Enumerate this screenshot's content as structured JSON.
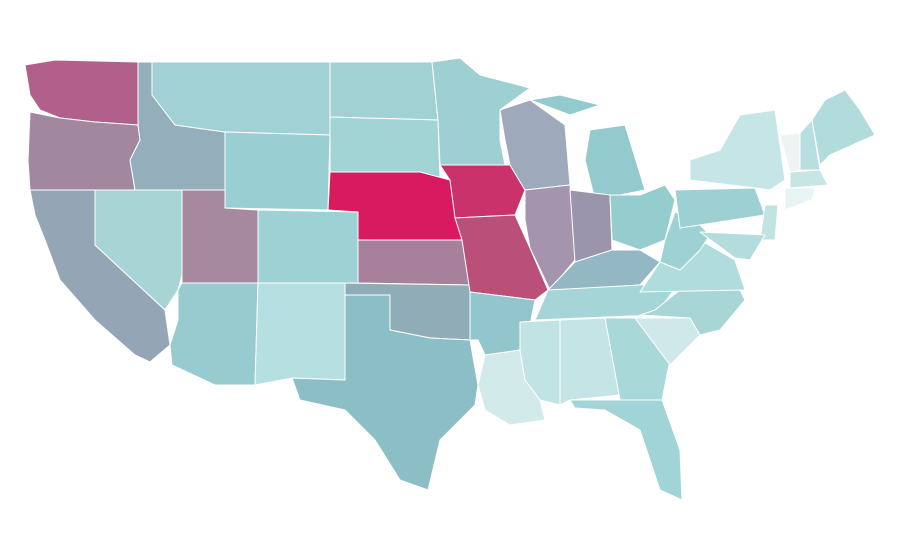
{
  "map": {
    "regions": [
      {
        "color": "#b0608a"
      },
      {
        "color": "#a2889e"
      },
      {
        "color": "#94a6b6"
      },
      {
        "color": "#a8d4d6"
      },
      {
        "color": "#94afbb"
      },
      {
        "color": "#a1d1d4"
      },
      {
        "color": "#99cfd2"
      },
      {
        "color": "#a6899e"
      },
      {
        "color": "#9dd1d3"
      },
      {
        "color": "#97cbcf"
      },
      {
        "color": "#b5dfe0"
      },
      {
        "color": "#a2d1d4"
      },
      {
        "color": "#a3d4d5"
      },
      {
        "color": "#d91a5e"
      },
      {
        "color": "#a7809c"
      },
      {
        "color": "#90adb7"
      },
      {
        "color": "#8cbfc5"
      },
      {
        "color": "#9ed0d3"
      },
      {
        "color": "#c9336a"
      },
      {
        "color": "#ba4f78"
      },
      {
        "color": "#93c6cc"
      },
      {
        "color": "#d3eaeb"
      },
      {
        "color": "#9eaabb"
      },
      {
        "color": "#a594ad"
      },
      {
        "color": "#92cacd"
      },
      {
        "color": "#92cacd"
      },
      {
        "color": "#9b94ad"
      },
      {
        "color": "#95cdcf"
      },
      {
        "color": "#93b8c3"
      },
      {
        "color": "#a5d5d6"
      },
      {
        "color": "#c2e3e4"
      },
      {
        "color": "#c5e4e5"
      },
      {
        "color": "#a9d8d9"
      },
      {
        "color": "#a0d4d6"
      },
      {
        "color": "#cfe9ea"
      },
      {
        "color": "#a8d6d7"
      },
      {
        "color": "#b1dcdd"
      },
      {
        "color": "#9ed1d3"
      },
      {
        "color": "#9dd0d2"
      },
      {
        "color": "#c5e5e6"
      },
      {
        "color": "#f0f3f4"
      },
      {
        "color": "#b7dfe0"
      },
      {
        "color": "#b2dbdc"
      },
      {
        "color": "#c8e5e6"
      },
      {
        "color": "#e8f3f4"
      },
      {
        "color": "#c0e3e3"
      },
      {
        "color": "#b4dcdd"
      }
    ]
  }
}
